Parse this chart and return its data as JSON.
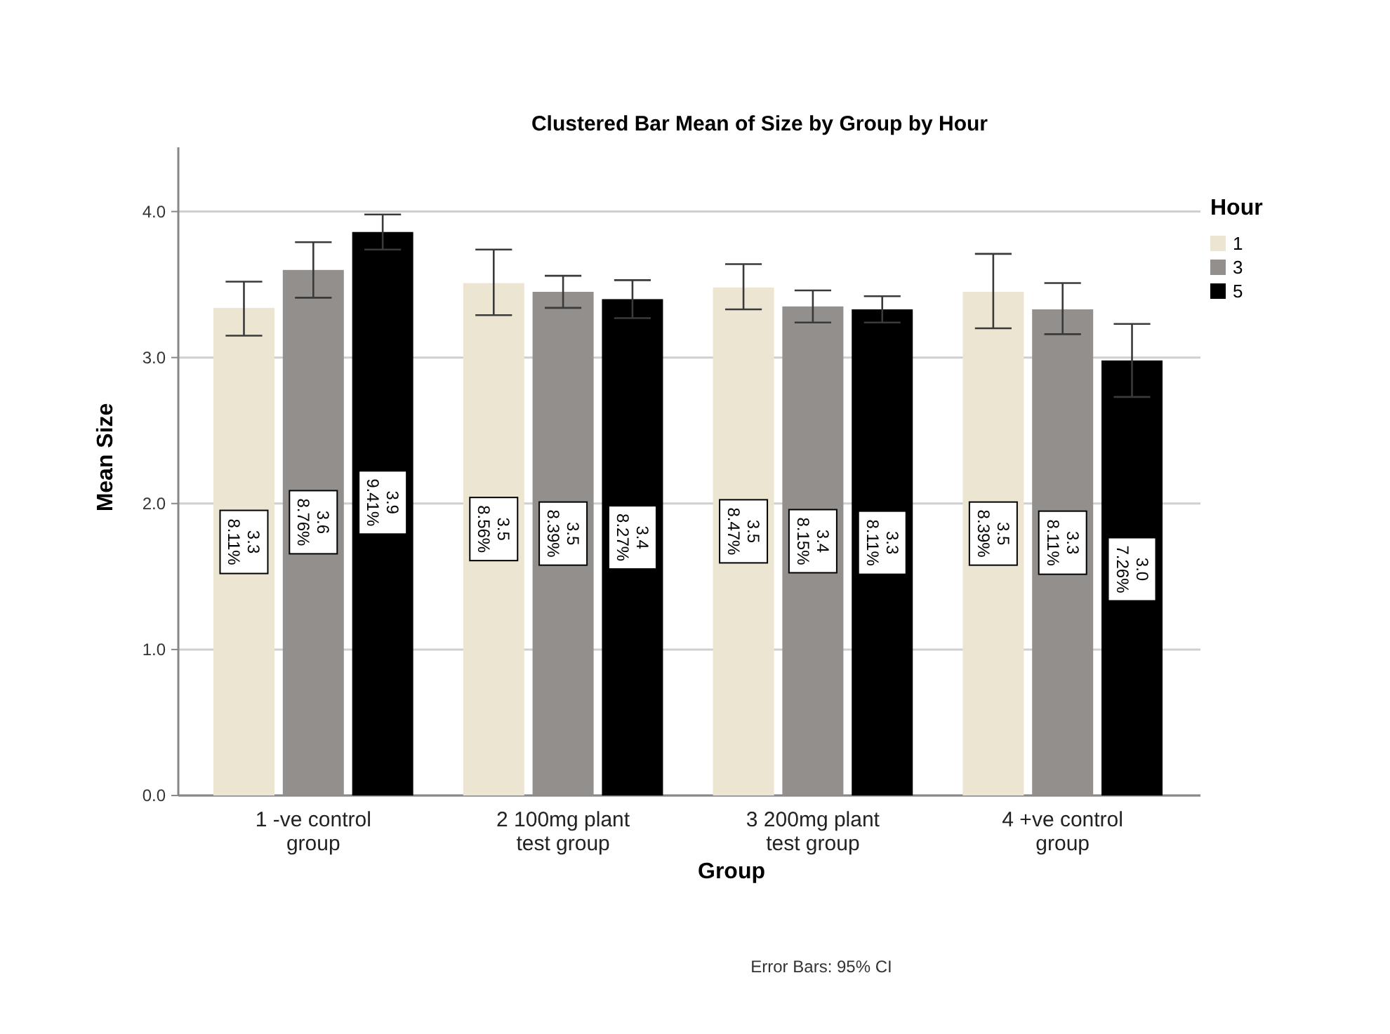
{
  "chart_data": {
    "type": "bar",
    "title": "Clustered Bar Mean of Size by Group by Hour",
    "xlabel": "Group",
    "ylabel": "Mean Size",
    "legend_title": "Hour",
    "categories": [
      "1 -ve control group",
      "2 100mg plant test group",
      "3 200mg plant test group",
      "4 +ve control group"
    ],
    "series": [
      {
        "name": "1",
        "color": "#ebe5d1",
        "values": [
          3.34,
          3.51,
          3.48,
          3.45
        ],
        "errors": [
          [
            3.15,
            3.52
          ],
          [
            3.29,
            3.74
          ],
          [
            3.33,
            3.64
          ],
          [
            3.2,
            3.71
          ]
        ],
        "value_labels": [
          "3.3\n8.11%",
          "3.5\n8.56%",
          "3.5\n8.47%",
          "3.5\n8.39%"
        ]
      },
      {
        "name": "3",
        "color": "#938f8d",
        "values": [
          3.6,
          3.45,
          3.35,
          3.33
        ],
        "errors": [
          [
            3.41,
            3.79
          ],
          [
            3.34,
            3.56
          ],
          [
            3.24,
            3.46
          ],
          [
            3.16,
            3.51
          ]
        ],
        "value_labels": [
          "3.6\n8.76%",
          "3.5\n8.39%",
          "3.4\n8.15%",
          "3.3\n8.11%"
        ]
      },
      {
        "name": "5",
        "color": "#000000",
        "values": [
          3.86,
          3.4,
          3.33,
          2.98
        ],
        "errors": [
          [
            3.74,
            3.98
          ],
          [
            3.27,
            3.53
          ],
          [
            3.24,
            3.42
          ],
          [
            2.73,
            3.23
          ]
        ],
        "value_labels": [
          "3.9\n9.41%",
          "3.4\n8.27%",
          "3.3\n8.11%",
          "3.0\n7.26%"
        ]
      }
    ],
    "ylim": [
      0,
      4.44
    ],
    "yticks": [
      {
        "value": 0,
        "label": "0.0"
      },
      {
        "value": 1,
        "label": "1.0"
      },
      {
        "value": 2,
        "label": "2.0"
      },
      {
        "value": 3,
        "label": "3.0"
      },
      {
        "value": 4,
        "label": "4.0"
      }
    ],
    "grid": "y",
    "legend": "top right",
    "annotations": [
      "Error Bars: 95% CI"
    ]
  }
}
